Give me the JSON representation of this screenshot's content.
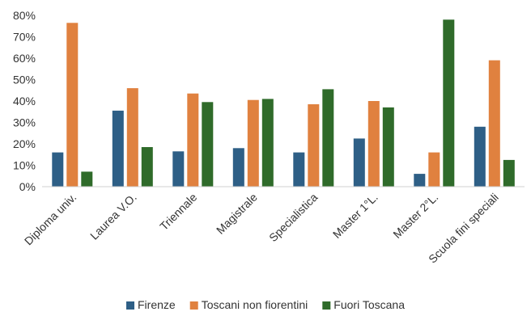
{
  "chart_data": {
    "type": "bar",
    "title": "",
    "xlabel": "",
    "ylabel": "",
    "ylim": [
      0,
      80
    ],
    "yticks": [
      0,
      10,
      20,
      30,
      40,
      50,
      60,
      70,
      80
    ],
    "ytick_labels": [
      "0%",
      "10%",
      "20%",
      "30%",
      "40%",
      "50%",
      "60%",
      "70%",
      "80%"
    ],
    "grid": false,
    "legend_position": "bottom",
    "categories": [
      "Diploma univ.",
      "Laurea V.O.",
      "Triennale",
      "Magistrale",
      "Specialistica",
      "Master 1°L.",
      "Master 2°L.",
      "Scuola fini speciali"
    ],
    "series": [
      {
        "name": "Firenze",
        "color": "#2e5f86",
        "values": [
          16,
          35.5,
          16.5,
          18,
          16,
          22.5,
          6,
          28
        ]
      },
      {
        "name": "Toscani non fiorentini",
        "color": "#e0813f",
        "values": [
          76.5,
          46,
          43.5,
          40.5,
          38.5,
          40,
          16,
          59
        ]
      },
      {
        "name": "Fuori Toscana",
        "color": "#2f6b2a",
        "values": [
          7,
          18.5,
          39.5,
          41,
          45.5,
          37,
          78,
          12.5
        ]
      }
    ]
  }
}
